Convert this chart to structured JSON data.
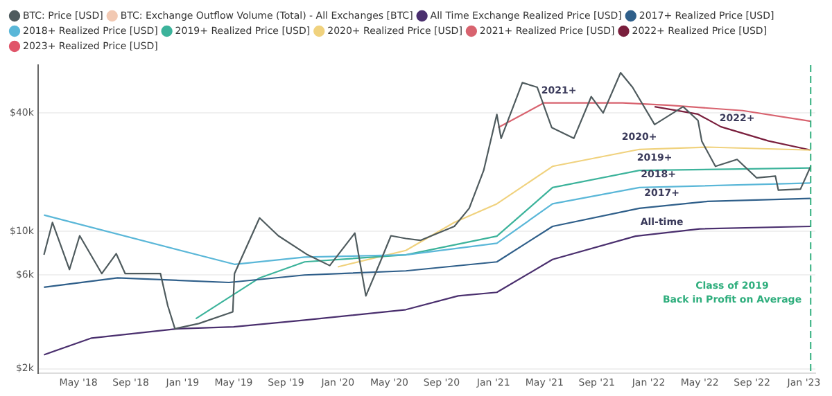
{
  "chart_data": {
    "type": "line",
    "log": "y",
    "grid": "y",
    "legend": "top",
    "marker": "none",
    "line_style": "solid",
    "xlim": [
      "2018-01-26",
      "2023-01-28"
    ],
    "xticks": [
      {
        "value": "2018-05-01",
        "label": "May '18"
      },
      {
        "value": "2018-09-01",
        "label": "Sep '18"
      },
      {
        "value": "2019-01-01",
        "label": "Jan '19"
      },
      {
        "value": "2019-05-01",
        "label": "May '19"
      },
      {
        "value": "2019-09-01",
        "label": "Sep '19"
      },
      {
        "value": "2020-01-01",
        "label": "Jan '20"
      },
      {
        "value": "2020-05-01",
        "label": "May '20"
      },
      {
        "value": "2020-09-01",
        "label": "Sep '20"
      },
      {
        "value": "2021-01-01",
        "label": "Jan '21"
      },
      {
        "value": "2021-05-01",
        "label": "May '21"
      },
      {
        "value": "2021-09-01",
        "label": "Sep '21"
      },
      {
        "value": "2022-01-01",
        "label": "Jan '22"
      },
      {
        "value": "2022-05-01",
        "label": "May '22"
      },
      {
        "value": "2022-09-01",
        "label": "Sep '22"
      },
      {
        "value": "2023-01-01",
        "label": "Jan '23"
      }
    ],
    "ylim": [
      1900,
      70000
    ],
    "yticks": [
      {
        "value": 2000,
        "label": "$2k"
      },
      {
        "value": 6000,
        "label": "$6k"
      },
      {
        "value": 10000,
        "label": "$10k"
      },
      {
        "value": 40000,
        "label": "$40k"
      }
    ],
    "series": [
      {
        "name": "BTC: Price [USD]",
        "color": "#4f5b5e",
        "x": [
          "2018-02-09",
          "2018-03-01",
          "2018-04-10",
          "2018-05-04",
          "2018-06-25",
          "2018-07-29",
          "2018-08-19",
          "2018-11-10",
          "2018-11-27",
          "2018-12-14",
          "2019-02-08",
          "2019-04-29",
          "2019-05-03",
          "2019-07-01",
          "2019-08-14",
          "2019-10-22",
          "2019-12-13",
          "2020-02-10",
          "2020-03-07",
          "2020-04-11",
          "2020-05-05",
          "2020-06-09",
          "2020-07-13",
          "2020-10-01",
          "2020-11-05",
          "2020-12-09",
          "2021-01-09",
          "2021-01-19",
          "2021-03-10",
          "2021-04-14",
          "2021-05-18",
          "2021-07-09",
          "2021-08-19",
          "2021-09-16",
          "2021-10-27",
          "2021-11-24",
          "2022-01-15",
          "2022-03-23",
          "2022-04-27",
          "2022-05-06",
          "2022-06-07",
          "2022-07-28",
          "2022-09-12",
          "2022-10-26",
          "2022-11-02",
          "2022-12-24",
          "2023-01-17"
        ],
        "values": [
          7600,
          11100,
          6400,
          9500,
          6100,
          7700,
          6100,
          6100,
          4200,
          3200,
          3400,
          3900,
          6100,
          11700,
          9500,
          7600,
          6700,
          9800,
          4700,
          7100,
          9500,
          9200,
          9000,
          10600,
          13100,
          20400,
          39300,
          29700,
          57000,
          54000,
          33700,
          29700,
          48400,
          40000,
          64000,
          54000,
          34900,
          43000,
          36600,
          28700,
          21400,
          23200,
          18700,
          19100,
          16200,
          16400,
          21400
        ]
      },
      {
        "name": "BTC: Exchange Outflow Volume (Total) - All Exchanges [BTC]",
        "color": "#f2c9b3"
      },
      {
        "name": "All Time Exchange Realized Price [USD]",
        "color": "#4a2f6e",
        "x": [
          "2018-02-09",
          "2018-06-01",
          "2018-12-20",
          "2019-05-01",
          "2019-10-15",
          "2020-06-09",
          "2020-10-10",
          "2021-01-09",
          "2021-05-20",
          "2021-12-01",
          "2022-05-01",
          "2023-01-17"
        ],
        "values": [
          2360,
          2870,
          3200,
          3270,
          3540,
          4000,
          4700,
          4900,
          7200,
          9450,
          10300,
          10600
        ]
      },
      {
        "name": "2017+ Realized Price [USD]",
        "color": "#2f5f8a",
        "x": [
          "2018-02-09",
          "2018-08-01",
          "2019-04-20",
          "2019-10-15",
          "2020-06-09",
          "2021-01-09",
          "2021-05-20",
          "2021-12-10",
          "2022-05-20",
          "2023-01-17"
        ],
        "values": [
          5200,
          5800,
          5500,
          6000,
          6300,
          7000,
          10600,
          13100,
          14200,
          14700
        ]
      },
      {
        "name": "2018+ Realized Price [USD]",
        "color": "#5ab7d8",
        "x": [
          "2018-02-09",
          "2019-05-03",
          "2019-10-15",
          "2020-06-09",
          "2021-01-09",
          "2021-05-20",
          "2021-12-10",
          "2023-01-17"
        ],
        "values": [
          12100,
          6800,
          7400,
          7600,
          8700,
          13800,
          16700,
          17600
        ]
      },
      {
        "name": "2019+ Realized Price [USD]",
        "color": "#3cb39b",
        "x": [
          "2019-02-01",
          "2019-07-01",
          "2019-10-15",
          "2020-06-09",
          "2021-01-09",
          "2021-05-20",
          "2021-12-10",
          "2023-01-17"
        ],
        "values": [
          3600,
          5800,
          7000,
          7600,
          9450,
          16700,
          20400,
          21000
        ]
      },
      {
        "name": "2020+ Realized Price [USD]",
        "color": "#f0d27e",
        "x": [
          "2020-01-01",
          "2020-06-09",
          "2020-10-01",
          "2021-01-09",
          "2021-05-20",
          "2021-12-10",
          "2022-05-20",
          "2023-01-17"
        ],
        "values": [
          6600,
          8000,
          11100,
          13800,
          21400,
          26100,
          26800,
          25900
        ]
      },
      {
        "name": "2021+ Realized Price [USD]",
        "color": "#d8636f",
        "x": [
          "2021-01-12",
          "2021-04-30",
          "2021-11-01",
          "2022-02-20",
          "2022-08-10",
          "2023-01-17"
        ],
        "values": [
          33700,
          45000,
          45000,
          43700,
          41100,
          36300
        ]
      },
      {
        "name": "2022+ Realized Price [USD]",
        "color": "#7a1f3d",
        "x": [
          "2022-01-15",
          "2022-04-27",
          "2022-06-20",
          "2022-10-10",
          "2023-01-17"
        ],
        "values": [
          43000,
          39400,
          34000,
          28800,
          25900
        ]
      },
      {
        "name": "2023+ Realized Price [USD]",
        "color": "#e0566a"
      }
    ],
    "ref_lines": [
      {
        "axis": "x",
        "value": "2023-01-17",
        "color": "#2fae7d",
        "line_style": "dashed"
      }
    ],
    "annotations": [
      {
        "text": "2021+",
        "x": "2021-06-04",
        "y": 47000
      },
      {
        "text": "2022+",
        "x": "2022-07-28",
        "y": 34000
      },
      {
        "text": "2020+",
        "x": "2021-12-10",
        "y": 27300
      },
      {
        "text": "2019+",
        "x": "2022-01-15",
        "y": 21400
      },
      {
        "text": "2018+",
        "x": "2022-01-24",
        "y": 17600
      },
      {
        "text": "2017+",
        "x": "2022-02-01",
        "y": 14200
      },
      {
        "text": "All-time",
        "x": "2022-02-01",
        "y": 10100
      },
      "Class of 2019\nBack in Profit on Average"
    ]
  }
}
